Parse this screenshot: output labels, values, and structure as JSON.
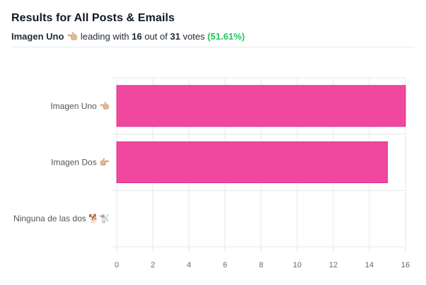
{
  "header": {
    "title": "Results for All Posts & Emails",
    "leader_name": "Imagen Uno 👈🏼",
    "leading_with_text": "leading with",
    "leader_votes": "16",
    "out_of_text": "out of",
    "total_votes": "31",
    "votes_text": "votes",
    "percent": "(51.61%)"
  },
  "colors": {
    "bar": "#f0489e",
    "accent_green": "#22c55e",
    "grid": "#e5e7eb"
  },
  "chart_data": {
    "type": "bar",
    "orientation": "horizontal",
    "categories": [
      "Imagen Uno 👈🏼",
      "Imagen Dos 👉🏼",
      "Ninguna de las dos 🐕🐩"
    ],
    "values": [
      16,
      15,
      0
    ],
    "xlim": [
      0,
      16
    ],
    "xticks": [
      "0",
      "2",
      "4",
      "6",
      "8",
      "10",
      "12",
      "14",
      "16"
    ],
    "grid": true
  }
}
